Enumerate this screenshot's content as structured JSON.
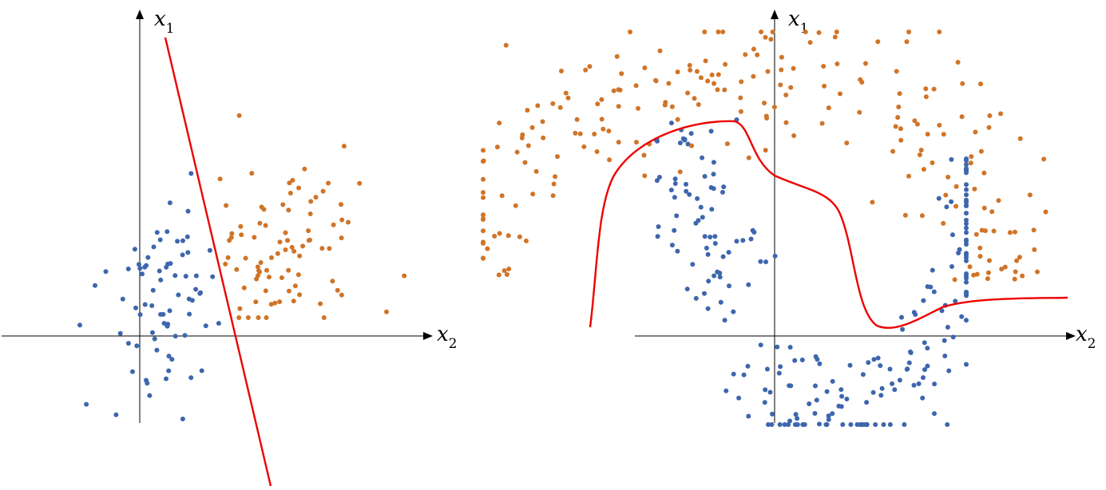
{
  "panels": [
    {
      "id": "linear",
      "axes": {
        "x_label": "x",
        "x_sub": "2",
        "y_label": "x",
        "y_sub": "1"
      },
      "boundary": {
        "type": "line"
      }
    },
    {
      "id": "nonlinear",
      "axes": {
        "x_label": "x",
        "x_sub": "2",
        "y_label": "x",
        "y_sub": "1"
      },
      "boundary": {
        "type": "curve"
      }
    }
  ],
  "colors": {
    "class_a": "#3d66ad",
    "class_b": "#d07428",
    "boundary": "#ee0000",
    "axis": "#000000"
  }
}
